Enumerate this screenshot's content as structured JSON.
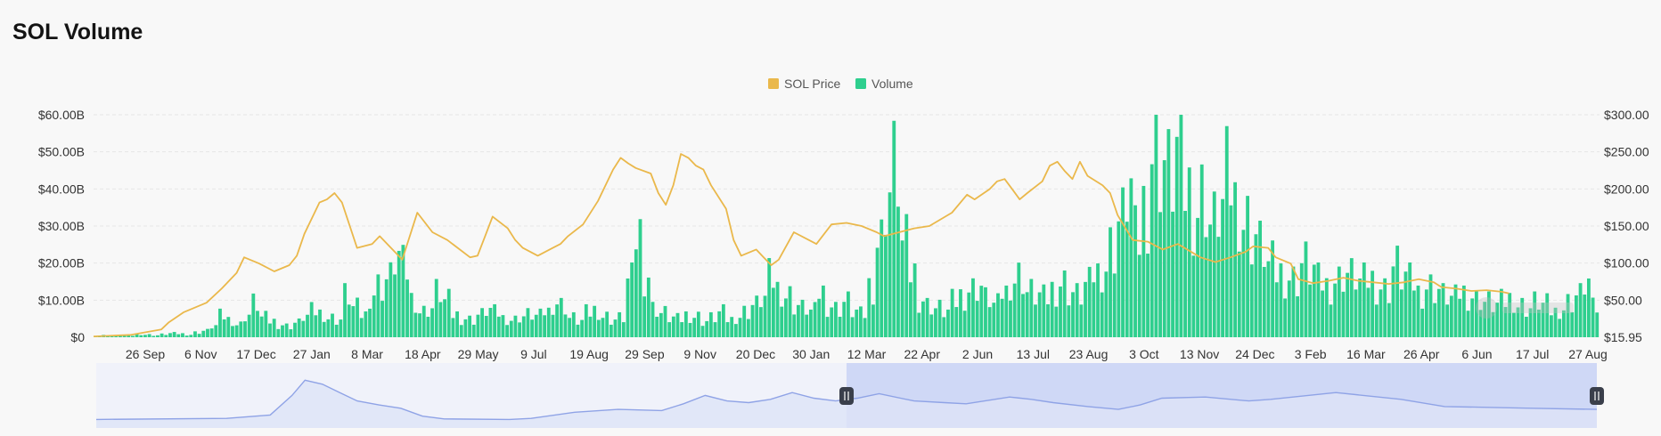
{
  "page": {
    "title": "SOL Volume"
  },
  "colors": {
    "price": "#eab84b",
    "volume": "#2ecf8e",
    "navigator_line": "#8fa3e6",
    "navigator_fill": "#dde3f8",
    "navigator_select": "#cfd8f6",
    "grid": "#e6e6e6",
    "handle": "#3a3f4b"
  },
  "watermark": {
    "text": "Glassnode-style watermark"
  },
  "chart_data": {
    "type": "bar",
    "title": "SOL Volume",
    "legend": [
      {
        "name": "SOL Price",
        "color": "#eab84b",
        "kind": "line"
      },
      {
        "name": "Volume",
        "color": "#2ecf8e",
        "kind": "bar"
      }
    ],
    "legend_position": "top-center",
    "grid": true,
    "y_left": {
      "ticks": [
        "$0",
        "$10.00B",
        "$20.00B",
        "$30.00B",
        "$40.00B",
        "$50.00B",
        "$60.00B"
      ],
      "range": [
        0,
        60
      ]
    },
    "y_right": {
      "ticks": [
        "$15.95",
        "$50.00",
        "$100.00",
        "$150.00",
        "$200.00",
        "$250.00",
        "$300.00"
      ],
      "range": [
        15.95,
        300
      ]
    },
    "x_ticks": [
      "26 Sep",
      "6 Nov",
      "17 Dec",
      "27 Jan",
      "8 Mar",
      "18 Apr",
      "29 May",
      "9 Jul",
      "19 Aug",
      "29 Sep",
      "9 Nov",
      "20 Dec",
      "30 Jan",
      "12 Mar",
      "22 Apr",
      "2 Jun",
      "13 Jul",
      "23 Aug",
      "3 Oct",
      "13 Nov",
      "24 Dec",
      "3 Feb",
      "16 Mar",
      "26 Apr",
      "6 Jun",
      "17 Jul",
      "27 Aug"
    ],
    "price_series": {
      "name": "SOL Price",
      "points": [
        [
          0,
          17
        ],
        [
          5,
          19
        ],
        [
          9,
          26
        ],
        [
          10,
          35
        ],
        [
          12,
          48
        ],
        [
          15,
          60
        ],
        [
          17,
          78
        ],
        [
          19,
          98
        ],
        [
          20,
          118
        ],
        [
          22,
          110
        ],
        [
          24,
          100
        ],
        [
          26,
          108
        ],
        [
          27,
          120
        ],
        [
          28,
          148
        ],
        [
          30,
          188
        ],
        [
          31,
          192
        ],
        [
          32,
          200
        ],
        [
          33,
          188
        ],
        [
          35,
          130
        ],
        [
          37,
          135
        ],
        [
          38,
          145
        ],
        [
          41,
          115
        ],
        [
          43,
          175
        ],
        [
          45,
          150
        ],
        [
          47,
          140
        ],
        [
          50,
          118
        ],
        [
          51,
          120
        ],
        [
          52,
          145
        ],
        [
          53,
          170
        ],
        [
          55,
          155
        ],
        [
          56,
          140
        ],
        [
          57,
          130
        ],
        [
          59,
          120
        ],
        [
          61,
          130
        ],
        [
          62,
          135
        ],
        [
          63,
          145
        ],
        [
          65,
          160
        ],
        [
          67,
          190
        ],
        [
          69,
          230
        ],
        [
          70,
          245
        ],
        [
          71,
          238
        ],
        [
          72,
          232
        ],
        [
          74,
          225
        ],
        [
          75,
          200
        ],
        [
          76,
          185
        ],
        [
          77,
          210
        ],
        [
          78,
          250
        ],
        [
          79,
          245
        ],
        [
          80,
          235
        ],
        [
          81,
          230
        ],
        [
          82,
          210
        ],
        [
          84,
          180
        ],
        [
          85,
          140
        ],
        [
          86,
          120
        ],
        [
          88,
          128
        ],
        [
          89,
          118
        ],
        [
          90,
          108
        ],
        [
          91,
          115
        ],
        [
          93,
          150
        ],
        [
          95,
          140
        ],
        [
          96,
          135
        ],
        [
          98,
          160
        ],
        [
          100,
          162
        ],
        [
          102,
          158
        ],
        [
          104,
          150
        ],
        [
          105,
          145
        ],
        [
          107,
          150
        ],
        [
          109,
          155
        ],
        [
          111,
          158
        ],
        [
          114,
          175
        ],
        [
          116,
          198
        ],
        [
          117,
          192
        ],
        [
          119,
          205
        ],
        [
          120,
          215
        ],
        [
          121,
          218
        ],
        [
          122,
          205
        ],
        [
          123,
          192
        ],
        [
          124,
          200
        ],
        [
          126,
          215
        ],
        [
          127,
          235
        ],
        [
          128,
          240
        ],
        [
          129,
          228
        ],
        [
          130,
          218
        ],
        [
          131,
          240
        ],
        [
          132,
          222
        ],
        [
          134,
          210
        ],
        [
          135,
          200
        ],
        [
          136,
          172
        ],
        [
          138,
          140
        ],
        [
          140,
          138
        ],
        [
          142,
          128
        ],
        [
          144,
          135
        ],
        [
          147,
          118
        ],
        [
          149,
          112
        ],
        [
          151,
          118
        ],
        [
          153,
          125
        ],
        [
          154,
          132
        ],
        [
          156,
          130
        ],
        [
          157,
          118
        ],
        [
          159,
          110
        ],
        [
          160,
          90
        ],
        [
          162,
          85
        ],
        [
          164,
          88
        ],
        [
          166,
          92
        ],
        [
          168,
          88
        ],
        [
          170,
          86
        ],
        [
          172,
          84
        ],
        [
          174,
          86
        ],
        [
          176,
          90
        ],
        [
          178,
          86
        ],
        [
          179,
          80
        ],
        [
          181,
          78
        ],
        [
          183,
          75
        ],
        [
          185,
          76
        ],
        [
          187,
          74
        ],
        [
          188,
          72
        ]
      ]
    },
    "volume_series": {
      "name": "Volume",
      "note": "daily volume in billions USD (sampled)",
      "values": [
        0.5,
        0.6,
        0.4,
        0.7,
        0.5,
        1.0,
        0.8,
        0.6,
        0.9,
        1.2,
        1.1,
        0.8,
        1.5,
        2.0,
        3.5,
        6.5,
        5.5,
        4.0,
        7.0,
        10.5,
        6.0,
        5.0,
        4.0,
        3.5,
        4.5,
        6.5,
        8.0,
        7.5,
        6.0,
        5.5,
        13.0,
        9.0,
        7.0,
        14.0,
        16.0,
        18.0,
        25.0,
        21.0,
        12.0,
        8.0,
        9.0,
        14.0,
        11.0,
        7.0,
        6.0,
        5.5,
        7.0,
        8.5,
        7.5,
        6.0,
        5.5,
        6.5,
        7.0,
        6.5,
        8.0,
        11.0,
        10.0,
        6.0,
        5.0,
        7.5,
        8.5,
        6.5,
        5.5,
        6.0,
        17.0,
        32.0,
        20.0,
        9.0,
        7.5,
        6.0,
        5.5,
        7.0,
        6.5,
        5.0,
        6.0,
        7.5,
        5.5,
        6.5,
        8.0,
        10.0,
        12.0,
        18.0,
        15.0,
        13.0,
        10.0,
        9.0,
        8.0,
        14.0,
        10.0,
        9.0,
        11.0,
        8.0,
        7.0,
        16.0,
        30.0,
        45.0,
        52.0,
        28.0,
        20.0,
        12.0,
        10.0,
        9.0,
        8.0,
        11.0,
        13.0,
        15.0,
        16.0,
        12.0,
        10.0,
        14.0,
        18.0,
        19.0,
        14.0,
        13.0,
        12.0,
        15.0,
        17.0,
        14.0,
        13.0,
        16.0,
        20.0,
        22.0,
        28.0,
        36.0,
        46.0,
        30.0,
        41.0,
        58.0,
        55.0,
        50.0,
        58.0,
        46.0,
        40.0,
        44.0,
        35.0,
        40.0,
        48.0,
        42.0,
        36.0,
        32.0,
        28.0,
        22.0,
        20.0,
        19.0,
        18.0,
        23.0,
        21.0,
        17.0,
        16.0,
        18.0,
        20.0,
        19.0,
        17.0,
        18.0,
        16.0,
        15.0,
        22.0,
        19.0,
        17.0,
        14.0,
        16.0,
        15.0,
        13.0,
        12.0,
        14.0,
        13.0,
        12.0,
        11.0,
        10.0,
        11.0,
        12.0,
        10.0,
        9.0,
        11.0,
        10.0,
        8.0,
        9.0,
        11.0,
        13.0,
        17.0,
        9.0
      ]
    },
    "navigator": {
      "line": [
        [
          0,
          0.12
        ],
        [
          30,
          0.14
        ],
        [
          40,
          0.2
        ],
        [
          45,
          0.55
        ],
        [
          48,
          0.82
        ],
        [
          52,
          0.75
        ],
        [
          56,
          0.6
        ],
        [
          60,
          0.45
        ],
        [
          65,
          0.38
        ],
        [
          70,
          0.32
        ],
        [
          75,
          0.18
        ],
        [
          80,
          0.13
        ],
        [
          95,
          0.12
        ],
        [
          100,
          0.14
        ],
        [
          110,
          0.25
        ],
        [
          120,
          0.3
        ],
        [
          130,
          0.28
        ],
        [
          135,
          0.4
        ],
        [
          140,
          0.55
        ],
        [
          145,
          0.45
        ],
        [
          150,
          0.42
        ],
        [
          155,
          0.48
        ],
        [
          160,
          0.6
        ],
        [
          165,
          0.5
        ],
        [
          170,
          0.45
        ],
        [
          175,
          0.5
        ],
        [
          180,
          0.58
        ],
        [
          188,
          0.45
        ],
        [
          195,
          0.42
        ],
        [
          200,
          0.4
        ],
        [
          210,
          0.52
        ],
        [
          215,
          0.48
        ],
        [
          220,
          0.42
        ],
        [
          228,
          0.35
        ],
        [
          235,
          0.3
        ],
        [
          240,
          0.38
        ],
        [
          245,
          0.5
        ],
        [
          255,
          0.52
        ],
        [
          265,
          0.45
        ],
        [
          270,
          0.48
        ],
        [
          285,
          0.6
        ],
        [
          300,
          0.48
        ],
        [
          310,
          0.35
        ],
        [
          330,
          0.32
        ],
        [
          345,
          0.3
        ]
      ],
      "selection": [
        0.5,
        1.0
      ]
    }
  }
}
